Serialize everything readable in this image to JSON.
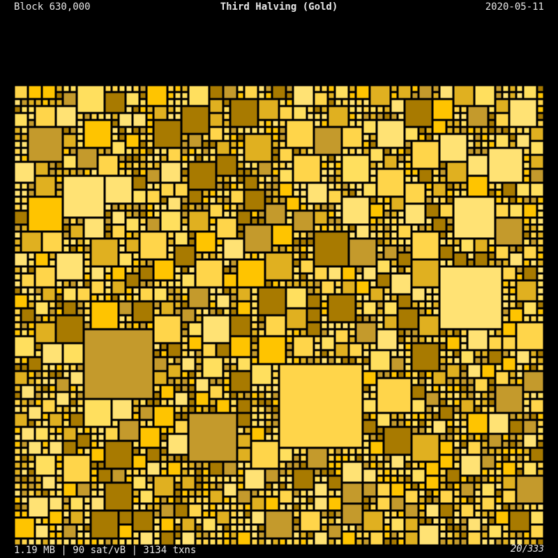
{
  "header": {
    "block": "Block 630,000",
    "title": "Third Halving (Gold)",
    "date": "2020-05-11"
  },
  "footer": {
    "stats": "1.19 MB | 90 sat/vB | 3134 txns",
    "page": "20",
    "total": "/333"
  }
}
